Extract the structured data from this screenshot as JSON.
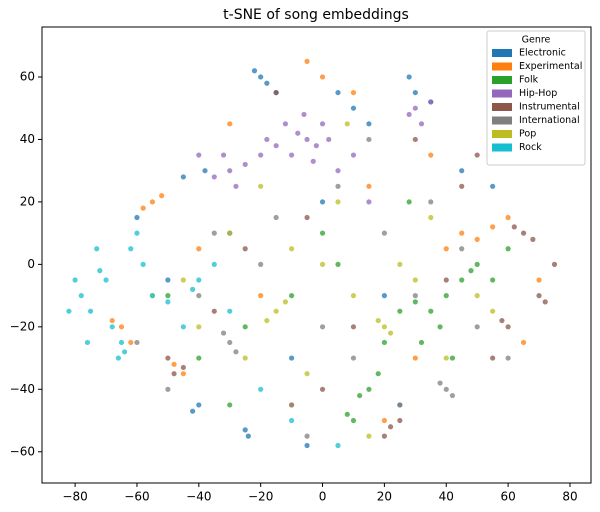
{
  "chart_data": {
    "type": "scatter",
    "title": "t-SNE of song embeddings",
    "legend_title": "Genre",
    "legend_loc": "upper right",
    "grid": false,
    "xlim": [
      -90.7,
      86.8
    ],
    "ylim": [
      -70,
      76
    ],
    "xticks": [
      {
        "value": -80,
        "label": "−80"
      },
      {
        "value": -60,
        "label": "−60"
      },
      {
        "value": -40,
        "label": "−40"
      },
      {
        "value": -20,
        "label": "−20"
      },
      0,
      20,
      40,
      60,
      80
    ],
    "yticks": [
      {
        "value": -60,
        "label": "−60"
      },
      {
        "value": -40,
        "label": "−40"
      },
      {
        "value": -20,
        "label": "−20"
      },
      0,
      20,
      40,
      60
    ],
    "series": [
      {
        "name": "Electronic",
        "color": "#1f77b4",
        "x": [
          -20,
          -18,
          -22,
          -15,
          -25,
          -24,
          -40,
          -42,
          -38,
          -45,
          10,
          5,
          15,
          30,
          28,
          35,
          -30,
          -10,
          0,
          20,
          45,
          -50,
          -60,
          55,
          -5,
          25
        ],
        "values": [
          60,
          58,
          62,
          55,
          -53,
          -55,
          -45,
          -47,
          30,
          28,
          50,
          55,
          45,
          55,
          60,
          52,
          10,
          -30,
          20,
          -10,
          30,
          -5,
          15,
          25,
          -58,
          -45
        ]
      },
      {
        "name": "Experimental",
        "color": "#ff7f0e",
        "x": [
          -55,
          -52,
          -58,
          -65,
          -62,
          -68,
          -45,
          -48,
          45,
          50,
          55,
          60,
          40,
          -5,
          0,
          10,
          20,
          -20,
          30,
          70,
          -30,
          15,
          -10,
          35,
          -40,
          65
        ],
        "values": [
          20,
          22,
          18,
          -20,
          -25,
          -18,
          -35,
          -32,
          10,
          8,
          12,
          15,
          5,
          65,
          60,
          55,
          -50,
          -10,
          -30,
          -5,
          45,
          25,
          -45,
          35,
          5,
          -25
        ]
      },
      {
        "name": "Folk",
        "color": "#2ca02c",
        "x": [
          40,
          35,
          30,
          45,
          50,
          48,
          38,
          25,
          15,
          12,
          10,
          8,
          20,
          55,
          -10,
          -25,
          -40,
          0,
          5,
          -30,
          60,
          42,
          28,
          18,
          -50,
          32
        ],
        "values": [
          -10,
          -15,
          -12,
          -5,
          0,
          -2,
          -20,
          -15,
          -40,
          -42,
          -50,
          -48,
          -25,
          -5,
          -10,
          -20,
          -30,
          10,
          0,
          -45,
          5,
          -30,
          20,
          -35,
          -10,
          -25
        ]
      },
      {
        "name": "Hip-Hop",
        "color": "#9467bd",
        "x": [
          -5,
          -8,
          -2,
          -10,
          0,
          -15,
          -20,
          -25,
          -30,
          -35,
          -32,
          -12,
          5,
          30,
          28,
          35,
          -3,
          -18,
          10,
          -28,
          -6,
          2,
          32,
          -40,
          15
        ],
        "values": [
          40,
          42,
          38,
          35,
          45,
          38,
          35,
          32,
          30,
          28,
          35,
          45,
          30,
          50,
          48,
          52,
          33,
          40,
          35,
          25,
          48,
          40,
          45,
          35,
          20
        ]
      },
      {
        "name": "Instrumental",
        "color": "#8c564b",
        "x": [
          65,
          62,
          68,
          70,
          72,
          60,
          58,
          75,
          -50,
          -48,
          -45,
          20,
          22,
          25,
          45,
          50,
          -15,
          0,
          -5,
          10,
          40,
          -35,
          30,
          55,
          -25
        ],
        "values": [
          10,
          12,
          8,
          -10,
          -12,
          -20,
          -18,
          0,
          -30,
          -35,
          -33,
          -55,
          -52,
          -50,
          25,
          35,
          55,
          -40,
          15,
          -20,
          -5,
          -15,
          40,
          -30,
          5
        ]
      },
      {
        "name": "International",
        "color": "#7f7f7f",
        "x": [
          -30,
          -28,
          -32,
          40,
          42,
          38,
          0,
          10,
          -10,
          -20,
          20,
          30,
          -40,
          50,
          -60,
          -50,
          5,
          15,
          -5,
          25,
          60,
          -35,
          35,
          45,
          -15
        ],
        "values": [
          -25,
          -28,
          -22,
          -40,
          -42,
          -38,
          -20,
          -30,
          -45,
          0,
          10,
          -10,
          -10,
          -20,
          -25,
          -40,
          25,
          40,
          -55,
          -45,
          -30,
          10,
          20,
          5,
          15
        ]
      },
      {
        "name": "Pop",
        "color": "#bcbd22",
        "x": [
          -15,
          -12,
          -18,
          20,
          22,
          18,
          0,
          10,
          -25,
          -30,
          30,
          40,
          -40,
          5,
          -5,
          15,
          -45,
          50,
          35,
          -20,
          25,
          -10,
          -55,
          55,
          8
        ],
        "values": [
          -15,
          -12,
          -18,
          -20,
          -22,
          -18,
          0,
          -10,
          -30,
          10,
          -5,
          -30,
          -20,
          20,
          -35,
          -55,
          -5,
          -10,
          15,
          25,
          0,
          5,
          -10,
          -15,
          45
        ]
      },
      {
        "name": "Rock",
        "color": "#17becf",
        "x": [
          -70,
          -72,
          -75,
          -78,
          -68,
          -65,
          -60,
          -62,
          -80,
          -82,
          -76,
          -66,
          -64,
          -55,
          -40,
          -42,
          -35,
          -45,
          -30,
          -20,
          -10,
          5,
          -58,
          -73,
          -50
        ],
        "values": [
          -5,
          -2,
          -15,
          -10,
          -20,
          -25,
          10,
          5,
          -5,
          -15,
          -25,
          -30,
          -28,
          -10,
          -5,
          -8,
          0,
          -20,
          -15,
          -40,
          -50,
          -58,
          0,
          5,
          -12
        ]
      }
    ]
  }
}
